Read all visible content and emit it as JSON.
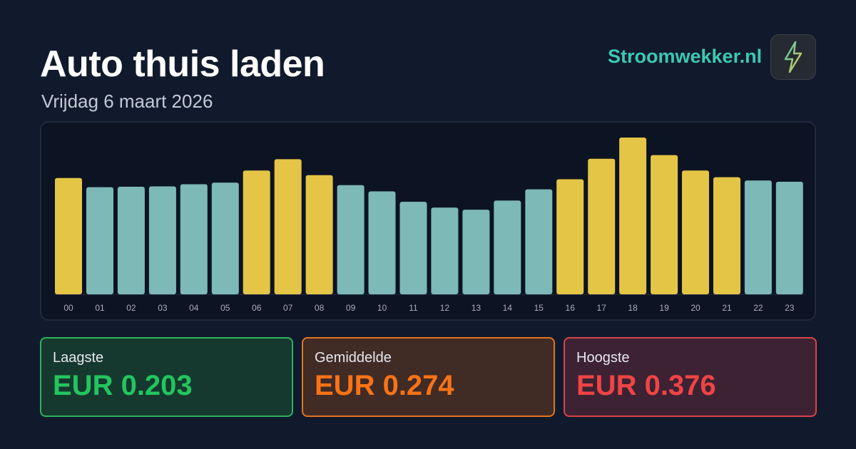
{
  "header": {
    "title": "Auto thuis laden",
    "subtitle": "Vrijdag 6 maart 2026"
  },
  "brand": {
    "name": "Stroomwekker.nl",
    "logo_icon": "lightning-bolt-icon"
  },
  "chart_data": {
    "type": "bar",
    "categories": [
      "00",
      "01",
      "02",
      "03",
      "04",
      "05",
      "06",
      "07",
      "08",
      "09",
      "10",
      "11",
      "12",
      "13",
      "14",
      "15",
      "16",
      "17",
      "18",
      "19",
      "20",
      "21",
      "22",
      "23"
    ],
    "values": [
      0.279,
      0.257,
      0.258,
      0.259,
      0.264,
      0.268,
      0.297,
      0.324,
      0.286,
      0.262,
      0.247,
      0.222,
      0.208,
      0.203,
      0.225,
      0.252,
      0.276,
      0.325,
      0.376,
      0.334,
      0.297,
      0.281,
      0.273,
      0.27
    ],
    "highlighted": [
      true,
      false,
      false,
      false,
      false,
      false,
      true,
      true,
      true,
      false,
      false,
      false,
      false,
      false,
      false,
      false,
      true,
      true,
      true,
      true,
      true,
      true,
      false,
      false
    ],
    "ylim": [
      0,
      0.376
    ],
    "grid": false,
    "colors": {
      "highlight": "#e5c546",
      "normal": "#7cb9b7"
    }
  },
  "stats": {
    "low": {
      "label": "Laagste",
      "value": "EUR 0.203",
      "color": "#22c55e",
      "bg": "#16392f",
      "border": "#2fb25c"
    },
    "avg": {
      "label": "Gemiddelde",
      "value": "EUR 0.274",
      "color": "#f97316",
      "bg": "#402b25",
      "border": "#e3741e"
    },
    "high": {
      "label": "Hoogste",
      "value": "EUR 0.376",
      "color": "#ef4444",
      "bg": "#3d2234",
      "border": "#d9434b"
    }
  }
}
